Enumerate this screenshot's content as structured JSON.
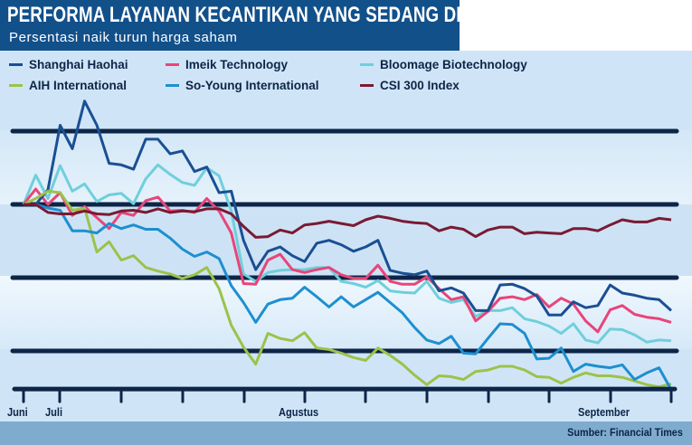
{
  "header": {
    "title": "PERFORMA LAYANAN KECANTIKAN YANG SEDANG DROP",
    "subtitle": "Persentasi naik turun harga saham"
  },
  "footer": {
    "source": "Sumber: Financial Times"
  },
  "chart_data": {
    "type": "line",
    "title": "PERFORMA LAYANAN KECANTIKAN YANG SEDANG DROP",
    "subtitle": "Persentasi naik turun harga saham",
    "xlabel": "",
    "ylabel": "",
    "x_ticks": 12,
    "x_labels": [
      {
        "label": "Juni",
        "tick": 0
      },
      {
        "label": "Juli",
        "tick": 1
      },
      {
        "label": "Agustus",
        "tick": 5
      },
      {
        "label": "September",
        "tick": 10
      }
    ],
    "ylim": [
      -25.2,
      14.5
    ],
    "gridlines": [
      10,
      0,
      -10,
      -20
    ],
    "grid": true,
    "legend_position": "top",
    "note": "y values are relative change estimated from the gridline spacing (no y tick labels are shown)",
    "series": [
      {
        "name": "Shanghai Haohai",
        "color": "#1a4f93",
        "values": [
          0,
          0,
          2,
          10.8,
          7.6,
          14.1,
          10.8,
          5.6,
          5.4,
          4.8,
          8.9,
          8.9,
          6.9,
          7.3,
          4.5,
          5.1,
          1.6,
          1.8,
          -4.9,
          -8.9,
          -6.4,
          -5.8,
          -7,
          -7.8,
          -5.3,
          -4.9,
          -5.5,
          -6.4,
          -5.8,
          -4.9,
          -9,
          -9.4,
          -9.6,
          -9.1,
          -11.8,
          -11.4,
          -12.1,
          -14.5,
          -14.5,
          -11,
          -10.9,
          -11.5,
          -12.5,
          -15.1,
          -15.1,
          -13.3,
          -14.1,
          -13.8,
          -11,
          -12.1,
          -12.4,
          -12.8,
          -13,
          -14.5
        ]
      },
      {
        "name": "Imeik Technology",
        "color": "#e8457a",
        "values": [
          0,
          2.1,
          0,
          1.6,
          -1.5,
          -0.3,
          -1.8,
          -3.3,
          -1.1,
          -1.5,
          0.5,
          1,
          -0.9,
          -0.8,
          -1.1,
          0.8,
          -0.9,
          -3.9,
          -10.8,
          -10.9,
          -7.6,
          -6.8,
          -8.9,
          -9.3,
          -8.9,
          -8.6,
          -9.6,
          -10.1,
          -10.1,
          -8.3,
          -10.5,
          -10.9,
          -10.9,
          -9.9,
          -11.5,
          -13,
          -12.6,
          -15.9,
          -14.6,
          -12.8,
          -12.6,
          -13,
          -12.3,
          -14,
          -12.8,
          -13.6,
          -15.9,
          -17.4,
          -14.4,
          -13.8,
          -15,
          -15.4,
          -15.6,
          -16.1
        ]
      },
      {
        "name": "Bloomage Biotechnology",
        "color": "#6fcfdc",
        "values": [
          0,
          4,
          0.8,
          5.3,
          1.8,
          2.8,
          0.4,
          1.3,
          1.5,
          0.1,
          3.5,
          5.4,
          4.1,
          3,
          2.6,
          5,
          3.9,
          -0.9,
          -9.5,
          -10.5,
          -9.3,
          -9,
          -8.9,
          -8.9,
          -8.6,
          -8.6,
          -10.5,
          -10.8,
          -11.3,
          -10.4,
          -11.8,
          -12,
          -12.1,
          -10.5,
          -12.8,
          -13.4,
          -13,
          -15.3,
          -14.5,
          -14.5,
          -14.1,
          -15.6,
          -16,
          -16.6,
          -17.6,
          -16.3,
          -18.5,
          -18.9,
          -17,
          -17.1,
          -17.8,
          -18.8,
          -18.5,
          -18.6
        ]
      },
      {
        "name": "AIH International",
        "color": "#9cc24a",
        "values": [
          0,
          0.8,
          1.8,
          1.6,
          -0.8,
          -0.5,
          -6.5,
          -5.1,
          -7.6,
          -7,
          -8.6,
          -9.1,
          -9.5,
          -10.1,
          -9.6,
          -8.6,
          -11.5,
          -16.5,
          -19.5,
          -21.8,
          -17.6,
          -18.3,
          -18.6,
          -17.5,
          -19.6,
          -19.8,
          -20.3,
          -20.9,
          -21.3,
          -19.6,
          -20.6,
          -21.8,
          -23.3,
          -24.6,
          -23.4,
          -23.5,
          -23.9,
          -22.8,
          -22.6,
          -22.1,
          -22.1,
          -22.6,
          -23.5,
          -23.6,
          -24.4,
          -23.6,
          -23,
          -23.4,
          -23.4,
          -23.6,
          -24.1,
          -24.6,
          -24.9,
          -24.5
        ]
      },
      {
        "name": "So-Young International",
        "color": "#1d8fd0",
        "values": [
          0,
          0,
          -0.5,
          -0.8,
          -3.6,
          -3.6,
          -3.9,
          -2.6,
          -3.3,
          -2.8,
          -3.4,
          -3.4,
          -4.6,
          -6.1,
          -7.1,
          -6.5,
          -7.4,
          -11.1,
          -13.4,
          -16.1,
          -13.6,
          -13,
          -12.8,
          -11.3,
          -12.6,
          -14,
          -12.6,
          -14,
          -13,
          -12,
          -13.4,
          -14.8,
          -16.8,
          -18.5,
          -19,
          -18,
          -20.3,
          -20.4,
          -18.3,
          -16.3,
          -16.4,
          -17.6,
          -21.1,
          -21,
          -19.6,
          -22.8,
          -21.8,
          -22.1,
          -22.3,
          -21.9,
          -23.9,
          -23,
          -22.3,
          -25.3
        ]
      },
      {
        "name": "CSI 300 Index",
        "color": "#7a1a33",
        "values": [
          0,
          0,
          -1.1,
          -1.3,
          -1.3,
          -0.9,
          -1.3,
          -1.4,
          -0.9,
          -0.8,
          -1.1,
          -0.6,
          -1.1,
          -0.9,
          -1,
          -0.6,
          -0.6,
          -1.3,
          -3,
          -4.5,
          -4.4,
          -3.5,
          -3.9,
          -2.8,
          -2.6,
          -2.3,
          -2.6,
          -2.9,
          -2.1,
          -1.6,
          -1.9,
          -2.3,
          -2.5,
          -2.6,
          -3.6,
          -3.1,
          -3.4,
          -4.4,
          -3.5,
          -3.1,
          -3.1,
          -4,
          -3.8,
          -3.9,
          -4,
          -3.3,
          -3.3,
          -3.6,
          -2.8,
          -2.1,
          -2.4,
          -2.4,
          -1.9,
          -2.1
        ]
      }
    ]
  }
}
